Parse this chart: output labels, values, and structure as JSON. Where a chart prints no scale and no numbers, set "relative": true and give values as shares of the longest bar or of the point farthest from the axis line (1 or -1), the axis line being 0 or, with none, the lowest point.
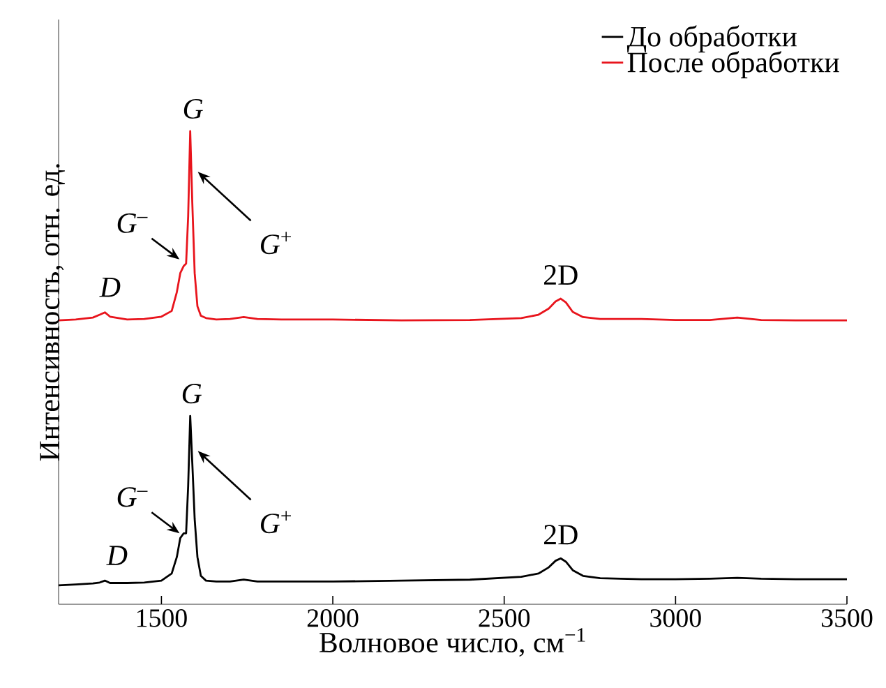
{
  "chart_data": {
    "type": "line",
    "relative": true,
    "xlabel": "Волновое число, см$^{−1}$",
    "ylabel": "Интенсивность, отн. ед.",
    "xlim": [
      1200,
      3500
    ],
    "xticks": [
      1500,
      2000,
      2500,
      3000,
      3500
    ],
    "tick_labels": "x",
    "grid": false,
    "legend": "top right",
    "marker": "none",
    "line_style": "solid",
    "x": [
      1200,
      1250,
      1300,
      1320,
      1335,
      1350,
      1400,
      1450,
      1500,
      1530,
      1545,
      1555,
      1565,
      1572,
      1578,
      1584,
      1590,
      1597,
      1605,
      1615,
      1630,
      1660,
      1700,
      1740,
      1780,
      1850,
      2000,
      2200,
      2400,
      2550,
      2600,
      2630,
      2650,
      2665,
      2680,
      2700,
      2730,
      2780,
      2900,
      3000,
      3100,
      3180,
      3250,
      3350,
      3500
    ],
    "series": [
      {
        "name": "До обработки",
        "color": "#000000",
        "values": [
          0.04,
          0.042,
          0.044,
          0.046,
          0.05,
          0.045,
          0.045,
          0.046,
          0.05,
          0.065,
          0.1,
          0.14,
          0.15,
          0.15,
          0.25,
          0.398,
          0.3,
          0.18,
          0.1,
          0.06,
          0.05,
          0.048,
          0.048,
          0.052,
          0.048,
          0.048,
          0.048,
          0.05,
          0.052,
          0.058,
          0.065,
          0.078,
          0.092,
          0.097,
          0.09,
          0.072,
          0.06,
          0.055,
          0.053,
          0.053,
          0.054,
          0.056,
          0.054,
          0.053,
          0.053
        ]
      },
      {
        "name": "После обработки",
        "color": "#e8141c",
        "values": [
          0.6,
          0.602,
          0.606,
          0.612,
          0.617,
          0.608,
          0.602,
          0.603,
          0.608,
          0.62,
          0.66,
          0.7,
          0.715,
          0.72,
          0.82,
          1.0,
          0.85,
          0.7,
          0.63,
          0.61,
          0.605,
          0.602,
          0.603,
          0.607,
          0.603,
          0.602,
          0.602,
          0.6,
          0.601,
          0.605,
          0.612,
          0.625,
          0.64,
          0.646,
          0.638,
          0.618,
          0.607,
          0.603,
          0.603,
          0.601,
          0.601,
          0.606,
          0.601,
          0.6,
          0.6
        ]
      }
    ],
    "annotations": [
      {
        "text": "*D*",
        "x": 1330,
        "y": 0.617
      },
      {
        "text": "*G*$^{–}$",
        "x": 1561,
        "y": 0.726
      },
      {
        "text": "*G*",
        "x": 1584,
        "y": 1.0
      },
      {
        "text": "*G*$^{+}$",
        "x": 1598,
        "y": 0.917
      },
      {
        "text": "2D",
        "x": 2665,
        "y": 0.646
      },
      {
        "text": "*D*",
        "x": 1330,
        "y": 0.05
      },
      {
        "text": "*G*$^{–}$",
        "x": 1561,
        "y": 0.147
      },
      {
        "text": "*G*",
        "x": 1584,
        "y": 0.398
      },
      {
        "text": "*G*$^{+}$",
        "x": 1598,
        "y": 0.327
      },
      {
        "text": "2D",
        "x": 2665,
        "y": 0.097
      }
    ]
  }
}
